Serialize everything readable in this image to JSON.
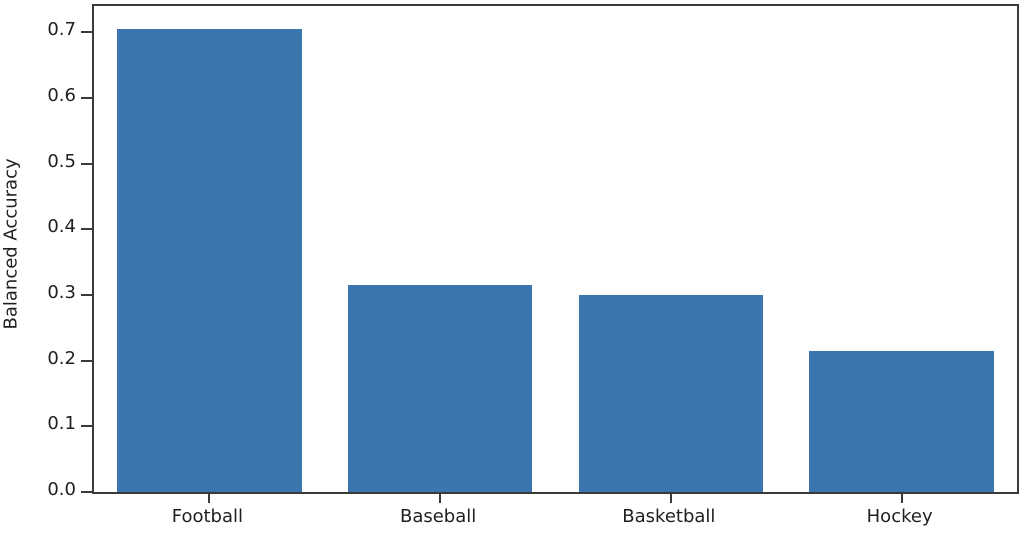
{
  "figure": {
    "background": "#ffffff",
    "spine_color": "#3a3a3a",
    "text_color": "#1f1f1f"
  },
  "chart_data": {
    "type": "bar",
    "title": "",
    "xlabel": "",
    "ylabel": "Balanced Accuracy",
    "categories": [
      "Football",
      "Baseball",
      "Basketball",
      "Hockey"
    ],
    "values": [
      0.705,
      0.315,
      0.3,
      0.215
    ],
    "bar_color": "#3A76AD",
    "ylim": [
      0,
      0.74
    ],
    "yticks": [
      0.0,
      0.1,
      0.2,
      0.3,
      0.4,
      0.5,
      0.6,
      0.7
    ],
    "ytick_labels": [
      "0.0",
      "0.1",
      "0.2",
      "0.3",
      "0.4",
      "0.5",
      "0.6",
      "0.7"
    ],
    "grid": false,
    "legend": "none",
    "bar_width_fraction": 0.8
  }
}
